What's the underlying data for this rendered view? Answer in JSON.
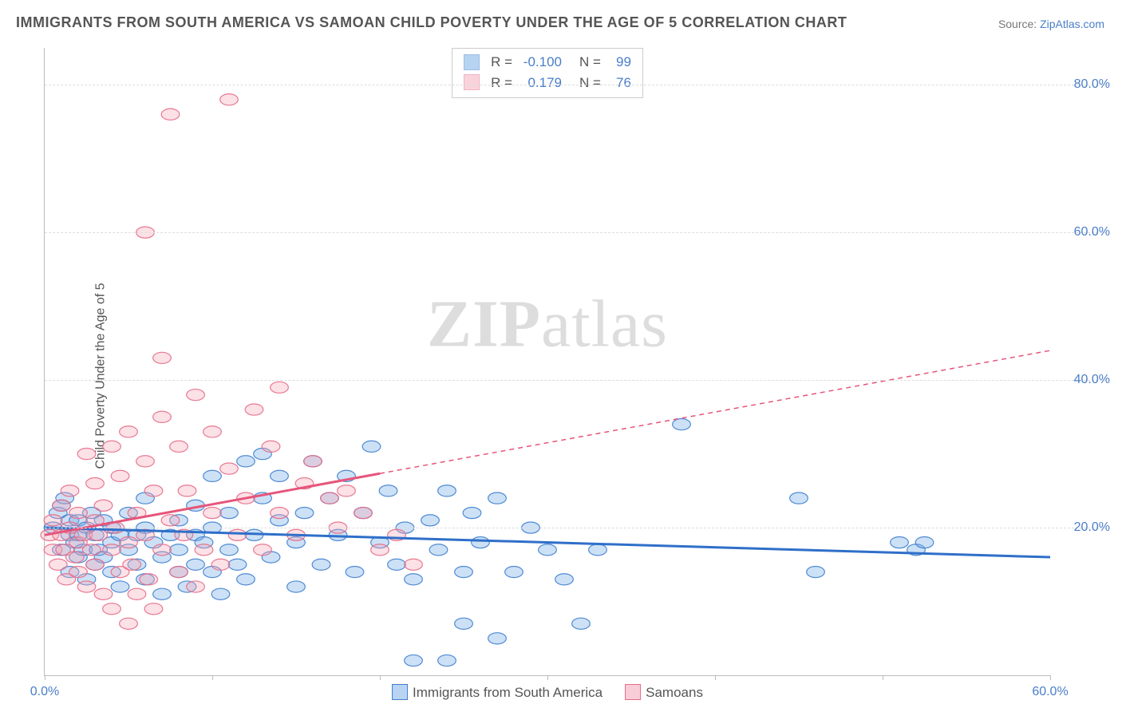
{
  "title": "IMMIGRANTS FROM SOUTH AMERICA VS SAMOAN CHILD POVERTY UNDER THE AGE OF 5 CORRELATION CHART",
  "source_label": "Source:",
  "source_name": "ZipAtlas.com",
  "y_axis_label": "Child Poverty Under the Age of 5",
  "watermark_bold": "ZIP",
  "watermark_light": "atlas",
  "chart": {
    "type": "scatter",
    "background_color": "#ffffff",
    "grid_color": "#dddddd",
    "axis_color": "#bbbbbb",
    "tick_label_color": "#4a7ec9",
    "label_color": "#555555",
    "title_color": "#555555",
    "title_fontsize": 18,
    "label_fontsize": 16,
    "xlim": [
      0,
      60
    ],
    "ylim": [
      0,
      85
    ],
    "y_ticks": [
      20,
      40,
      60,
      80
    ],
    "y_tick_labels": [
      "20.0%",
      "40.0%",
      "60.0%",
      "80.0%"
    ],
    "x_ticks": [
      0,
      10,
      20,
      30,
      40,
      50,
      60
    ],
    "x_tick_labels_shown": {
      "0": "0.0%",
      "60": "60.0%"
    },
    "marker_radius": 9,
    "marker_opacity": 0.35,
    "marker_stroke_opacity": 0.9,
    "trend_line_width": 3,
    "series": [
      {
        "name": "Immigrants from South America",
        "color": "#6fa8e6",
        "stroke": "#3f7fcf",
        "line_color": "#2f6fc9",
        "R": "-0.100",
        "N": "99",
        "trend": {
          "x1": 0,
          "y1": 20,
          "x2": 60,
          "y2": 16,
          "dash_from_x": null
        },
        "points": [
          [
            0.5,
            20
          ],
          [
            0.8,
            22
          ],
          [
            1,
            17
          ],
          [
            1,
            23
          ],
          [
            1.2,
            24
          ],
          [
            1.5,
            14
          ],
          [
            1.5,
            19
          ],
          [
            1.5,
            21
          ],
          [
            1.8,
            18
          ],
          [
            2,
            16
          ],
          [
            2,
            19
          ],
          [
            2,
            21
          ],
          [
            2.3,
            17
          ],
          [
            2.5,
            13
          ],
          [
            2.5,
            20
          ],
          [
            2.8,
            22
          ],
          [
            3,
            19
          ],
          [
            3,
            15
          ],
          [
            3.2,
            17
          ],
          [
            3.5,
            21
          ],
          [
            3.5,
            16
          ],
          [
            4,
            18
          ],
          [
            4,
            20
          ],
          [
            4,
            14
          ],
          [
            4.5,
            19
          ],
          [
            4.5,
            12
          ],
          [
            5,
            17
          ],
          [
            5,
            22
          ],
          [
            5.5,
            15
          ],
          [
            5.5,
            19
          ],
          [
            6,
            13
          ],
          [
            6,
            20
          ],
          [
            6,
            24
          ],
          [
            6.5,
            18
          ],
          [
            7,
            16
          ],
          [
            7,
            11
          ],
          [
            7.5,
            19
          ],
          [
            8,
            14
          ],
          [
            8,
            21
          ],
          [
            8,
            17
          ],
          [
            8.5,
            12
          ],
          [
            9,
            19
          ],
          [
            9,
            15
          ],
          [
            9,
            23
          ],
          [
            9.5,
            18
          ],
          [
            10,
            14
          ],
          [
            10,
            20
          ],
          [
            10,
            27
          ],
          [
            10.5,
            11
          ],
          [
            11,
            17
          ],
          [
            11,
            22
          ],
          [
            11.5,
            15
          ],
          [
            12,
            29
          ],
          [
            12,
            13
          ],
          [
            12.5,
            19
          ],
          [
            13,
            24
          ],
          [
            13,
            30
          ],
          [
            13.5,
            16
          ],
          [
            14,
            21
          ],
          [
            14,
            27
          ],
          [
            15,
            12
          ],
          [
            15,
            18
          ],
          [
            15.5,
            22
          ],
          [
            16,
            29
          ],
          [
            16.5,
            15
          ],
          [
            17,
            24
          ],
          [
            17.5,
            19
          ],
          [
            18,
            27
          ],
          [
            18.5,
            14
          ],
          [
            19,
            22
          ],
          [
            19.5,
            31
          ],
          [
            20,
            18
          ],
          [
            20.5,
            25
          ],
          [
            21,
            15
          ],
          [
            21.5,
            20
          ],
          [
            22,
            2
          ],
          [
            22,
            13
          ],
          [
            23,
            21
          ],
          [
            23.5,
            17
          ],
          [
            24,
            2
          ],
          [
            24,
            25
          ],
          [
            25,
            7
          ],
          [
            25,
            14
          ],
          [
            25.5,
            22
          ],
          [
            26,
            18
          ],
          [
            27,
            5
          ],
          [
            27,
            24
          ],
          [
            28,
            14
          ],
          [
            29,
            20
          ],
          [
            30,
            17
          ],
          [
            31,
            13
          ],
          [
            32,
            7
          ],
          [
            33,
            17
          ],
          [
            38,
            34
          ],
          [
            45,
            24
          ],
          [
            46,
            14
          ],
          [
            51,
            18
          ],
          [
            52,
            17
          ],
          [
            52.5,
            18
          ]
        ]
      },
      {
        "name": "Samoans",
        "color": "#f5a8b8",
        "stroke": "#e66b87",
        "line_color": "#e6557a",
        "R": "0.179",
        "N": "76",
        "trend": {
          "x1": 0,
          "y1": 19,
          "x2": 60,
          "y2": 44,
          "dash_from_x": 20
        },
        "points": [
          [
            0.3,
            19
          ],
          [
            0.5,
            17
          ],
          [
            0.5,
            21
          ],
          [
            0.8,
            15
          ],
          [
            1,
            19
          ],
          [
            1,
            23
          ],
          [
            1.2,
            17
          ],
          [
            1.3,
            13
          ],
          [
            1.5,
            20
          ],
          [
            1.5,
            25
          ],
          [
            1.8,
            16
          ],
          [
            2,
            18
          ],
          [
            2,
            22
          ],
          [
            2,
            14
          ],
          [
            2.3,
            19
          ],
          [
            2.5,
            12
          ],
          [
            2.5,
            30
          ],
          [
            2.8,
            17
          ],
          [
            3,
            21
          ],
          [
            3,
            15
          ],
          [
            3,
            26
          ],
          [
            3.2,
            19
          ],
          [
            3.5,
            11
          ],
          [
            3.5,
            23
          ],
          [
            4,
            17
          ],
          [
            4,
            31
          ],
          [
            4,
            9
          ],
          [
            4.2,
            20
          ],
          [
            4.5,
            14
          ],
          [
            4.5,
            27
          ],
          [
            5,
            18
          ],
          [
            5,
            7
          ],
          [
            5,
            33
          ],
          [
            5.2,
            15
          ],
          [
            5.5,
            22
          ],
          [
            5.5,
            11
          ],
          [
            6,
            19
          ],
          [
            6,
            29
          ],
          [
            6,
            60
          ],
          [
            6.2,
            13
          ],
          [
            6.5,
            25
          ],
          [
            6.5,
            9
          ],
          [
            7,
            17
          ],
          [
            7,
            35
          ],
          [
            7,
            43
          ],
          [
            7.5,
            21
          ],
          [
            7.5,
            76
          ],
          [
            8,
            14
          ],
          [
            8,
            31
          ],
          [
            8.3,
            19
          ],
          [
            8.5,
            25
          ],
          [
            9,
            12
          ],
          [
            9,
            38
          ],
          [
            9.5,
            17
          ],
          [
            10,
            22
          ],
          [
            10,
            33
          ],
          [
            10.5,
            15
          ],
          [
            11,
            28
          ],
          [
            11,
            78
          ],
          [
            11.5,
            19
          ],
          [
            12,
            24
          ],
          [
            12.5,
            36
          ],
          [
            13,
            17
          ],
          [
            13.5,
            31
          ],
          [
            14,
            22
          ],
          [
            14,
            39
          ],
          [
            15,
            19
          ],
          [
            15.5,
            26
          ],
          [
            16,
            29
          ],
          [
            17,
            24
          ],
          [
            17.5,
            20
          ],
          [
            18,
            25
          ],
          [
            19,
            22
          ],
          [
            20,
            17
          ],
          [
            21,
            19
          ],
          [
            22,
            15
          ]
        ]
      }
    ]
  },
  "bottom_legend": [
    {
      "label": "Immigrants from South America",
      "fill": "#b9d4f2",
      "border": "#3f7fcf"
    },
    {
      "label": "Samoans",
      "fill": "#f8cdd7",
      "border": "#e66b87"
    }
  ]
}
